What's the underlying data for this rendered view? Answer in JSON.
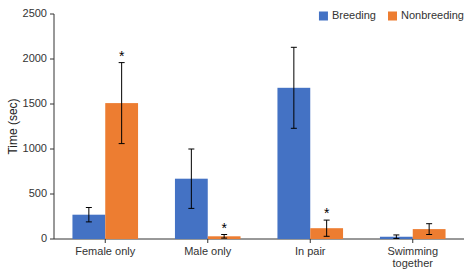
{
  "chart_data": {
    "type": "bar",
    "categories": [
      "Female only",
      "Male only",
      "In pair",
      "Swimming\ntogether"
    ],
    "series": [
      {
        "name": "Breeding",
        "color": "#4472C4",
        "values": [
          270,
          670,
          1680,
          25
        ],
        "errors": [
          80,
          330,
          450,
          20
        ]
      },
      {
        "name": "Nonbreeding",
        "color": "#ED7D31",
        "values": [
          1510,
          30,
          120,
          110
        ],
        "errors": [
          450,
          20,
          90,
          60
        ]
      }
    ],
    "y_label": "Time (sec)",
    "ylim": [
      0,
      2500
    ],
    "yticks": [
      0,
      500,
      1000,
      1500,
      2000,
      2500
    ],
    "annotations": [
      {
        "text": "*",
        "category": "Female only",
        "series": "Nonbreeding"
      },
      {
        "text": "*",
        "category": "Male only",
        "series": "Nonbreeding"
      },
      {
        "text": "*",
        "category": "In pair",
        "series": "Nonbreeding"
      }
    ],
    "legend": "upper right",
    "grid": false
  }
}
